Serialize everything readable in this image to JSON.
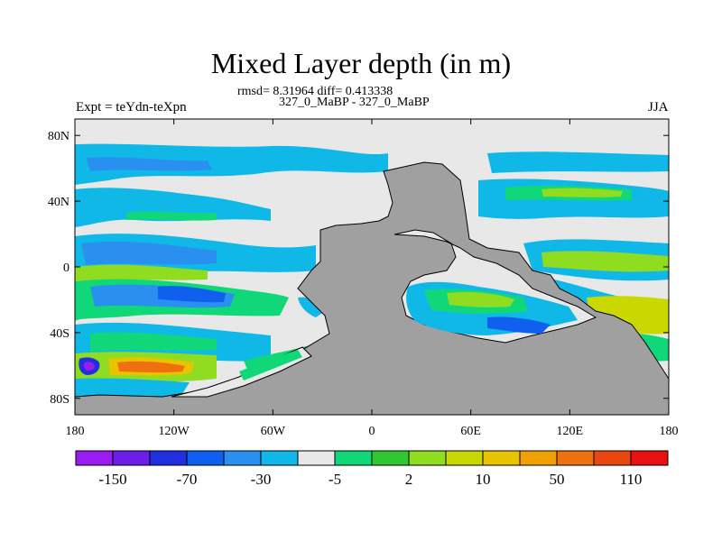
{
  "chart_data": {
    "type": "heatmap",
    "title": "Mixed Layer depth (in m)",
    "stats_line": "rmsd= 8.31964 diff= 0.413338",
    "subtitle": "327_0_MaBP - 327_0_MaBP",
    "left_label": "Expt = teYdn-teXpn",
    "right_label": "JJA",
    "x_ticks": [
      "180",
      "120W",
      "60W",
      "0",
      "60E",
      "120E",
      "180"
    ],
    "y_ticks": [
      "80N",
      "40N",
      "0",
      "40S",
      "80S"
    ],
    "xlim": [
      -180,
      180
    ],
    "ylim": [
      -90,
      90
    ],
    "land_color": "#a0a0a0",
    "colorbar": {
      "colors": [
        "#9a1cf0",
        "#6a1ee8",
        "#2030e0",
        "#1060f0",
        "#2a90f0",
        "#10b8e8",
        "#e8e8e8",
        "#10d878",
        "#30c830",
        "#90dc20",
        "#c8d800",
        "#e8c400",
        "#f0a000",
        "#f07010",
        "#e84810",
        "#e81010"
      ],
      "labels": [
        "-150",
        "-70",
        "-30",
        "-5",
        "2",
        "10",
        "50",
        "110"
      ]
    }
  }
}
